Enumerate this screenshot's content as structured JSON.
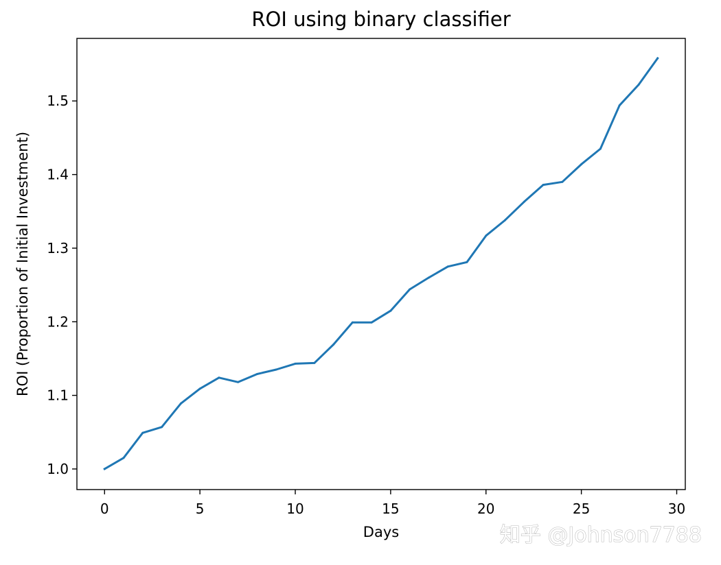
{
  "chart_data": {
    "type": "line",
    "title": "ROI using binary classifier",
    "xlabel": "Days",
    "ylabel": "ROI (Proportion of Initial Investment)",
    "xlim": [
      -1.45,
      30.45
    ],
    "ylim": [
      0.972,
      1.585
    ],
    "xticks": [
      0,
      5,
      10,
      15,
      20,
      25,
      30
    ],
    "xtick_labels": [
      "0",
      "5",
      "10",
      "15",
      "20",
      "25",
      "30"
    ],
    "yticks": [
      1.0,
      1.1,
      1.2,
      1.3,
      1.4,
      1.5
    ],
    "ytick_labels": [
      "1.0",
      "1.1",
      "1.2",
      "1.3",
      "1.4",
      "1.5"
    ],
    "grid": false,
    "series": [
      {
        "color": "#1f77b4",
        "x": [
          0,
          1,
          2,
          3,
          4,
          5,
          6,
          7,
          8,
          9,
          10,
          11,
          12,
          13,
          14,
          15,
          16,
          17,
          18,
          19,
          20,
          21,
          22,
          23,
          24,
          25,
          26,
          27,
          28,
          29
        ],
        "values": [
          1.0,
          1.015,
          1.049,
          1.057,
          1.089,
          1.109,
          1.124,
          1.118,
          1.129,
          1.135,
          1.143,
          1.144,
          1.169,
          1.199,
          1.199,
          1.215,
          1.244,
          1.26,
          1.275,
          1.281,
          1.317,
          1.338,
          1.363,
          1.386,
          1.39,
          1.414,
          1.435,
          1.494,
          1.522,
          1.558
        ]
      }
    ]
  },
  "watermark": {
    "text": "知乎 @Johnson7788"
  }
}
